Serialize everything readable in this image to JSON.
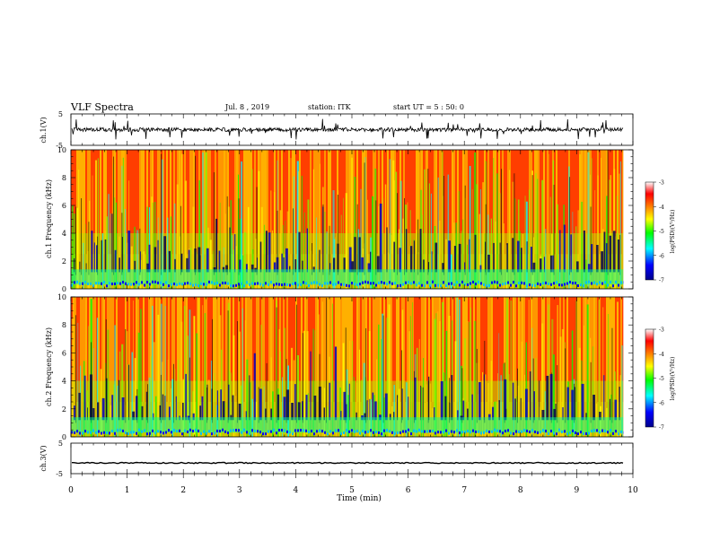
{
  "header": {
    "title": "VLF Spectra",
    "date": "Jul. 8 , 2019",
    "station": "station: ITK",
    "start": "start UT = 5 : 50: 0"
  },
  "chart_data": [
    {
      "type": "line",
      "panel": "ch1-waveform",
      "ylabel": "ch.1(V)",
      "ylim": [
        -5,
        5
      ],
      "yticks": [
        "5",
        "-5"
      ],
      "color": "#000000",
      "baseline": 0,
      "note_series": "noisy waveform, spikes up to about +/-3 V"
    },
    {
      "type": "heatmap",
      "panel": "ch1-spectrogram",
      "ylabel": "ch.1 Frequency (kHz)",
      "ylim": [
        0,
        10
      ],
      "yticks": [
        "0",
        "2",
        "4",
        "6",
        "8",
        "10"
      ],
      "colorbar": {
        "label": "log(PSD)(V²/Hz)",
        "range": [
          -7,
          -3
        ],
        "ticks": [
          "-3",
          "-4",
          "-5",
          "-6",
          "-7"
        ],
        "colors": [
          "#00008b",
          "#0000ff",
          "#00ffff",
          "#00ff00",
          "#ffff00",
          "#ff8000",
          "#ff0000",
          "#ffffff"
        ]
      }
    },
    {
      "type": "heatmap",
      "panel": "ch2-spectrogram",
      "ylabel": "ch.2 Frequency (kHz)",
      "ylim": [
        0,
        10
      ],
      "yticks": [
        "0",
        "2",
        "4",
        "6",
        "8",
        "10"
      ],
      "colorbar": {
        "label": "log(PSD)(V²/Hz)",
        "range": [
          -7,
          -3
        ],
        "ticks": [
          "-3",
          "-4",
          "-5",
          "-6",
          "-7"
        ],
        "colors": [
          "#00008b",
          "#0000ff",
          "#00ffff",
          "#00ff00",
          "#ffff00",
          "#ff8000",
          "#ff0000",
          "#ffffff"
        ]
      }
    },
    {
      "type": "line",
      "panel": "ch3-waveform",
      "ylabel": "ch.3(V)",
      "ylim": [
        -5,
        5
      ],
      "yticks": [
        "5",
        "-5"
      ],
      "color": "#000000",
      "baseline": -1.5
    }
  ],
  "xaxis": {
    "label": "Time (min)",
    "range": [
      0,
      10
    ],
    "ticks": [
      "0",
      "1",
      "2",
      "3",
      "4",
      "5",
      "6",
      "7",
      "8",
      "9",
      "10"
    ],
    "data_end": 9.83
  }
}
